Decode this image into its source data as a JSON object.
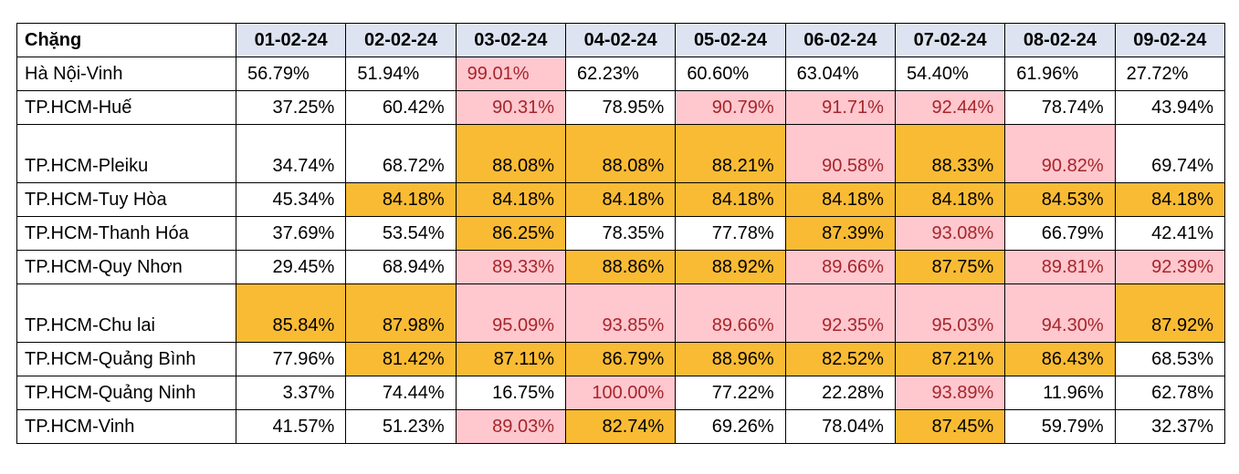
{
  "table": {
    "header": [
      "Chặng",
      "01-02-24",
      "02-02-24",
      "03-02-24",
      "04-02-24",
      "05-02-24",
      "06-02-24",
      "07-02-24",
      "08-02-24",
      "09-02-24"
    ],
    "header_fill": "#dde3f0",
    "styles": {
      "pink": {
        "fill": "#ffc7ce",
        "color": "#a4262c"
      },
      "orange": {
        "fill": "#f9bb33",
        "color": "#000000"
      }
    },
    "rows": [
      {
        "label": "Hà Nội-Vinh",
        "cells": [
          "56.79%",
          "51.94%",
          "99.01%",
          "62.23%",
          "60.60%",
          "63.04%",
          "54.40%",
          "61.96%",
          "27.72%"
        ],
        "styles": [
          null,
          null,
          "pink",
          null,
          null,
          null,
          null,
          null,
          null
        ]
      },
      {
        "label": "TP.HCM-Huế",
        "cells": [
          "37.25%",
          "60.42%",
          "90.31%",
          "78.95%",
          "90.79%",
          "91.71%",
          "92.44%",
          "78.74%",
          "43.94%"
        ],
        "styles": [
          null,
          null,
          "pink",
          null,
          "pink",
          "pink",
          "pink",
          null,
          null
        ]
      },
      {
        "label": "TP.HCM-Pleiku",
        "cells": [
          "34.74%",
          "68.72%",
          "88.08%",
          "88.08%",
          "88.21%",
          "90.58%",
          "88.33%",
          "90.82%",
          "69.74%"
        ],
        "styles": [
          null,
          null,
          "orange",
          "orange",
          "orange",
          "pink",
          "orange",
          "pink",
          null
        ]
      },
      {
        "label": "TP.HCM-Tuy Hòa",
        "cells": [
          "45.34%",
          "84.18%",
          "84.18%",
          "84.18%",
          "84.18%",
          "84.18%",
          "84.18%",
          "84.53%",
          "84.18%"
        ],
        "styles": [
          null,
          "orange",
          "orange",
          "orange",
          "orange",
          "orange",
          "orange",
          "orange",
          "orange"
        ]
      },
      {
        "label": "TP.HCM-Thanh Hóa",
        "cells": [
          "37.69%",
          "53.54%",
          "86.25%",
          "78.35%",
          "77.78%",
          "87.39%",
          "93.08%",
          "66.79%",
          "42.41%"
        ],
        "styles": [
          null,
          null,
          "orange",
          null,
          null,
          "orange",
          "pink",
          null,
          null
        ]
      },
      {
        "label": "TP.HCM-Quy Nhơn",
        "cells": [
          "29.45%",
          "68.94%",
          "89.33%",
          "88.86%",
          "88.92%",
          "89.66%",
          "87.75%",
          "89.81%",
          "92.39%"
        ],
        "styles": [
          null,
          null,
          "pink",
          "orange",
          "orange",
          "pink",
          "orange",
          "pink",
          "pink"
        ]
      },
      {
        "label": "TP.HCM-Chu lai",
        "cells": [
          "85.84%",
          "87.98%",
          "95.09%",
          "93.85%",
          "89.66%",
          "92.35%",
          "95.03%",
          "94.30%",
          "87.92%"
        ],
        "styles": [
          "orange",
          "orange",
          "pink",
          "pink",
          "pink",
          "pink",
          "pink",
          "pink",
          "orange"
        ]
      },
      {
        "label": "TP.HCM-Quảng Bình",
        "cells": [
          "77.96%",
          "81.42%",
          "87.11%",
          "86.79%",
          "88.96%",
          "82.52%",
          "87.21%",
          "86.43%",
          "68.53%"
        ],
        "styles": [
          null,
          "orange",
          "orange",
          "orange",
          "orange",
          "orange",
          "orange",
          "orange",
          null
        ]
      },
      {
        "label": "TP.HCM-Quảng Ninh",
        "cells": [
          "3.37%",
          "74.44%",
          "16.75%",
          "100.00%",
          "77.22%",
          "22.28%",
          "93.89%",
          "11.96%",
          "62.78%"
        ],
        "styles": [
          null,
          null,
          null,
          "pink",
          null,
          null,
          "pink",
          null,
          null
        ]
      },
      {
        "label": "TP.HCM-Vinh",
        "cells": [
          "41.57%",
          "51.23%",
          "89.03%",
          "82.74%",
          "69.26%",
          "78.04%",
          "87.45%",
          "59.79%",
          "32.37%"
        ],
        "styles": [
          null,
          null,
          "pink",
          "orange",
          null,
          null,
          "orange",
          null,
          null
        ]
      }
    ]
  }
}
